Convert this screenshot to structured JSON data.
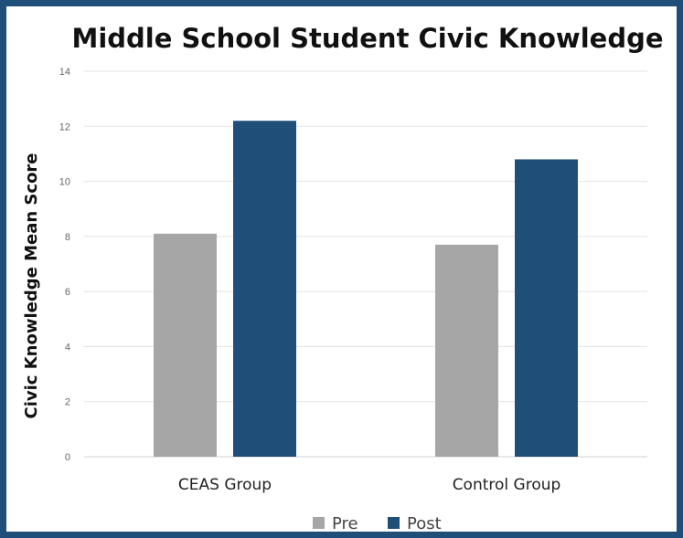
{
  "chart_data": {
    "type": "bar",
    "title": "Middle School Student Civic Knowledge",
    "xlabel": "",
    "ylabel": "Civic Knowledge Mean Score",
    "categories": [
      "CEAS Group",
      "Control Group"
    ],
    "series": [
      {
        "name": "Pre",
        "values": [
          8.1,
          7.7
        ],
        "color": "#a6a6a6"
      },
      {
        "name": "Post",
        "values": [
          12.2,
          10.8
        ],
        "color": "#1f4e79"
      }
    ],
    "ylim": [
      0,
      14
    ],
    "yticks": [
      0,
      2,
      4,
      6,
      8,
      10,
      12,
      14
    ],
    "grid": true,
    "legend_position": "bottom"
  },
  "colors": {
    "frame": "#1f4e79",
    "gridline": "#e3e3e3"
  }
}
